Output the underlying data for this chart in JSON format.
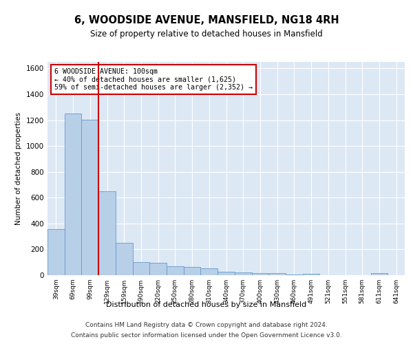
{
  "title": "6, WOODSIDE AVENUE, MANSFIELD, NG18 4RH",
  "subtitle": "Size of property relative to detached houses in Mansfield",
  "xlabel": "Distribution of detached houses by size in Mansfield",
  "ylabel": "Number of detached properties",
  "footer_line1": "Contains HM Land Registry data © Crown copyright and database right 2024.",
  "footer_line2": "Contains public sector information licensed under the Open Government Licence v3.0.",
  "annotation_line1": "6 WOODSIDE AVENUE: 100sqm",
  "annotation_line2": "← 40% of detached houses are smaller (1,625)",
  "annotation_line3": "59% of semi-detached houses are larger (2,352) →",
  "bar_color": "#b8cfe8",
  "bar_edge_color": "#6699cc",
  "background_color": "#dde8f5",
  "red_line_color": "#cc0000",
  "annotation_box_edge_color": "#cc0000",
  "categories": [
    "39sqm",
    "69sqm",
    "99sqm",
    "129sqm",
    "159sqm",
    "190sqm",
    "220sqm",
    "250sqm",
    "280sqm",
    "310sqm",
    "340sqm",
    "370sqm",
    "400sqm",
    "430sqm",
    "460sqm",
    "491sqm",
    "521sqm",
    "551sqm",
    "581sqm",
    "611sqm",
    "641sqm"
  ],
  "values": [
    355,
    1250,
    1205,
    650,
    250,
    100,
    95,
    70,
    65,
    52,
    28,
    22,
    18,
    15,
    5,
    12,
    2,
    2,
    2,
    18,
    2
  ],
  "ylim": [
    0,
    1650
  ],
  "yticks": [
    0,
    200,
    400,
    600,
    800,
    1000,
    1200,
    1400,
    1600
  ],
  "red_line_bin_index": 2,
  "figsize": [
    6.0,
    5.0
  ],
  "dpi": 100
}
